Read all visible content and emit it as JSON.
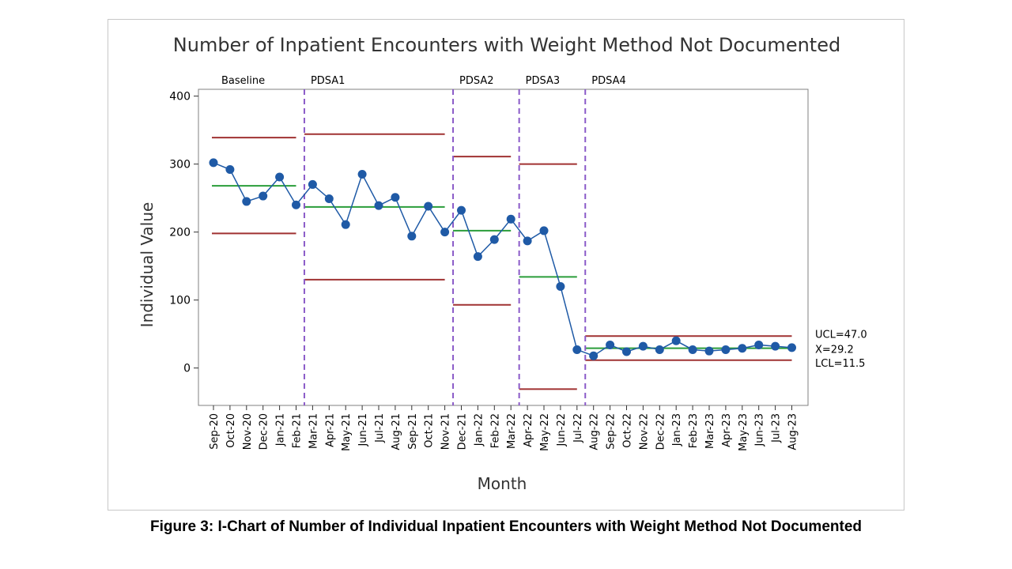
{
  "caption": "Figure 3: I-Chart of Number of Individual Inpatient Encounters with Weight Method Not Documented",
  "chart_data": {
    "type": "line",
    "title": "Number of Inpatient Encounters with Weight Method Not Documented",
    "xlabel": "Month",
    "ylabel": "Individual Value",
    "ylim": [
      -55,
      410
    ],
    "yticks": [
      0,
      100,
      200,
      300,
      400
    ],
    "grid": false,
    "categories": [
      "Sep-20",
      "Oct-20",
      "Nov-20",
      "Dec-20",
      "Jan-21",
      "Feb-21",
      "Mar-21",
      "Apr-21",
      "May-21",
      "Jun-21",
      "Jul-21",
      "Aug-21",
      "Sep-21",
      "Oct-21",
      "Nov-21",
      "Dec-21",
      "Jan-22",
      "Feb-22",
      "Mar-22",
      "Apr-22",
      "May-22",
      "Jun-22",
      "Jul-22",
      "Aug-22",
      "Sep-22",
      "Oct-22",
      "Nov-22",
      "Dec-22",
      "Jan-23",
      "Feb-23",
      "Mar-23",
      "Apr-23",
      "May-23",
      "Jun-23",
      "Jul-23",
      "Aug-23"
    ],
    "series": [
      {
        "values": [
          302,
          292,
          245,
          253,
          281,
          240,
          270,
          249,
          211,
          285,
          239,
          251,
          194,
          238,
          200,
          232,
          164,
          189,
          219,
          187,
          202,
          120,
          27,
          18,
          34,
          24,
          32,
          27,
          40,
          27,
          25,
          27,
          29,
          34,
          32,
          30
        ],
        "color": "#1f5aa6"
      }
    ],
    "phases": [
      {
        "label": "Baseline",
        "start": 0,
        "end": 5,
        "ucl": 339,
        "mean": 268,
        "lcl": 198
      },
      {
        "label": "PDSA1",
        "start": 6,
        "end": 14,
        "ucl": 344,
        "mean": 237,
        "lcl": 130
      },
      {
        "label": "PDSA2",
        "start": 15,
        "end": 18,
        "ucl": 311,
        "mean": 202,
        "lcl": 93
      },
      {
        "label": "PDSA3",
        "start": 19,
        "end": 22,
        "ucl": 300,
        "mean": 134,
        "lcl": -31
      },
      {
        "label": "PDSA4",
        "start": 23,
        "end": 35,
        "ucl": 47.0,
        "mean": 29.2,
        "lcl": 11.5
      }
    ],
    "limit_labels": [
      "UCL=47.0",
      "X=29.2",
      "LCL=11.5"
    ],
    "colors": {
      "data": "#1f5aa6",
      "ucl_lcl": "#a03232",
      "mean": "#2a9d3a",
      "phase_divider": "#8a5ac8"
    }
  }
}
